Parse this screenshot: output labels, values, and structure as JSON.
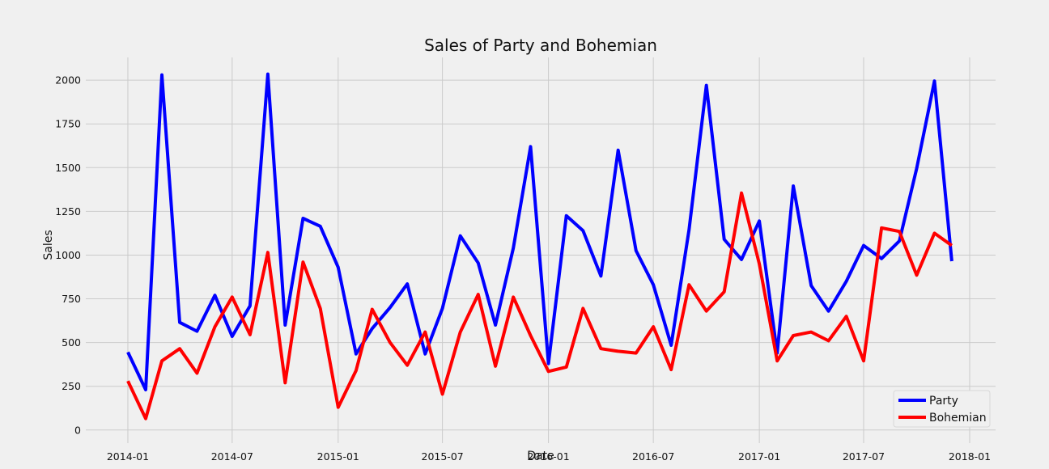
{
  "chart_data": {
    "type": "line",
    "title": "Sales of Party and Bohemian",
    "xlabel": "Date",
    "ylabel": "Sales",
    "x": [
      "2014-01",
      "2014-02",
      "2014-03",
      "2014-04",
      "2014-05",
      "2014-06",
      "2014-07",
      "2014-08",
      "2014-09",
      "2014-10",
      "2014-11",
      "2014-12",
      "2015-01",
      "2015-02",
      "2015-03",
      "2015-04",
      "2015-05",
      "2015-06",
      "2015-07",
      "2015-08",
      "2015-09",
      "2015-10",
      "2015-11",
      "2015-12",
      "2016-01",
      "2016-02",
      "2016-03",
      "2016-04",
      "2016-05",
      "2016-06",
      "2016-07",
      "2016-08",
      "2016-09",
      "2016-10",
      "2016-11",
      "2016-12",
      "2017-01",
      "2017-02",
      "2017-03",
      "2017-04",
      "2017-05",
      "2017-06",
      "2017-07",
      "2017-08",
      "2017-09",
      "2017-10",
      "2017-11",
      "2017-12"
    ],
    "series": [
      {
        "name": "Party",
        "color": "#0000ff",
        "values": [
          445,
          230,
          2030,
          615,
          565,
          770,
          535,
          710,
          2035,
          600,
          1210,
          1165,
          930,
          435,
          580,
          700,
          835,
          435,
          695,
          1110,
          955,
          600,
          1040,
          1620,
          380,
          1225,
          1140,
          880,
          1600,
          1025,
          830,
          485,
          1145,
          1970,
          1090,
          975,
          1195,
          440,
          1395,
          825,
          680,
          850,
          1055,
          980,
          1080,
          1495,
          1995,
          965
        ]
      },
      {
        "name": "Bohemian",
        "color": "#ff0000",
        "values": [
          280,
          65,
          395,
          465,
          325,
          590,
          760,
          545,
          1015,
          270,
          960,
          695,
          130,
          340,
          690,
          500,
          370,
          560,
          205,
          560,
          775,
          365,
          760,
          540,
          335,
          360,
          695,
          465,
          450,
          440,
          590,
          345,
          830,
          680,
          790,
          1355,
          950,
          395,
          540,
          560,
          510,
          650,
          395,
          1155,
          1135,
          885,
          1125,
          1055
        ]
      }
    ],
    "xticks": [
      "2014-01",
      "2014-07",
      "2015-01",
      "2015-07",
      "2016-01",
      "2016-07",
      "2017-01",
      "2017-07",
      "2018-01"
    ],
    "yticks": [
      0,
      250,
      500,
      750,
      1000,
      1250,
      1500,
      1750,
      2000
    ],
    "ylim": [
      -75,
      2130
    ],
    "xlim": [
      "2013-10-20",
      "2018-02-15"
    ],
    "grid": true,
    "legend_position": "lower-right"
  }
}
